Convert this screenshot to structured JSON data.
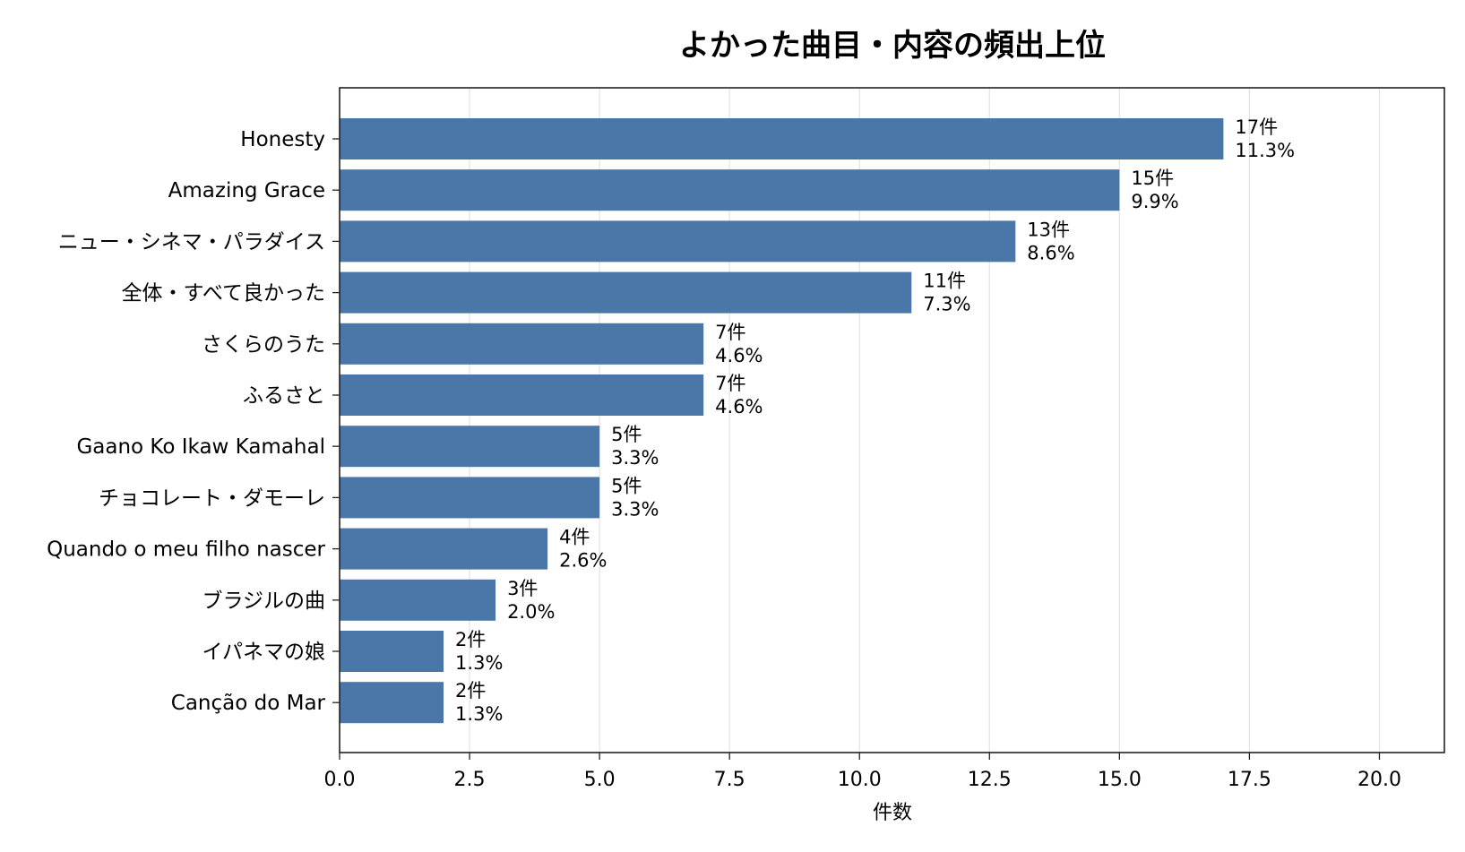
{
  "chart_data": {
    "type": "bar",
    "orientation": "horizontal",
    "title": "よかった曲目・内容の頻出上位",
    "xlabel": "件数",
    "ylabel": "",
    "xlim": [
      0,
      21.25
    ],
    "xticks": [
      "0.0",
      "2.5",
      "5.0",
      "7.5",
      "10.0",
      "12.5",
      "15.0",
      "17.5",
      "20.0"
    ],
    "grid": "x",
    "bar_color": "#4a76a8",
    "categories": [
      "Honesty",
      "Amazing Grace",
      "ニュー・シネマ・パラダイス",
      "全体・すべて良かった",
      "さくらのうた",
      "ふるさと",
      "Gaano Ko Ikaw Kamahal",
      "チョコレート・ダモーレ",
      "Quando o meu filho nascer",
      "ブラジルの曲",
      "イパネマの娘",
      "Canção do Mar"
    ],
    "values": [
      17,
      15,
      13,
      11,
      7,
      7,
      5,
      5,
      4,
      3,
      2,
      2
    ],
    "count_labels": [
      "17件",
      "15件",
      "13件",
      "11件",
      "7件",
      "7件",
      "5件",
      "5件",
      "4件",
      "3件",
      "2件",
      "2件"
    ],
    "percent_labels": [
      "11.3%",
      "9.9%",
      "8.6%",
      "7.3%",
      "4.6%",
      "4.6%",
      "3.3%",
      "3.3%",
      "2.6%",
      "2.0%",
      "1.3%",
      "1.3%"
    ]
  }
}
